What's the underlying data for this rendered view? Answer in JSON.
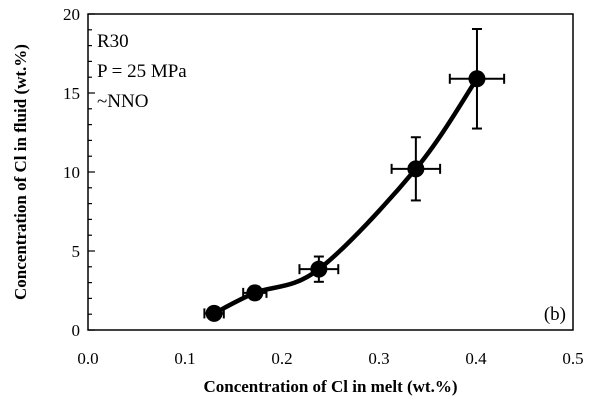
{
  "chart_data": {
    "type": "scatter",
    "xlabel": "Concentration of Cl in melt (wt.%)",
    "ylabel": "Concentration of Cl in fluid (wt.%)",
    "xlim": [
      0.0,
      0.5
    ],
    "ylim": [
      0,
      20
    ],
    "x_ticks": [
      "0.0",
      "0.1",
      "0.2",
      "0.3",
      "0.4",
      "0.5"
    ],
    "x_tick_values": [
      0.0,
      0.1,
      0.2,
      0.3,
      0.4,
      0.5
    ],
    "y_ticks": [
      "0",
      "5",
      "10",
      "15",
      "20"
    ],
    "y_tick_values": [
      0,
      5,
      10,
      15,
      20
    ],
    "y_minor_step": 1,
    "grid": false,
    "legend": "none",
    "annotations": [
      "R30",
      "P = 25 MPa",
      "~NNO"
    ],
    "panel_label": "(b)",
    "series": [
      {
        "points": [
          {
            "x": 0.13,
            "y": 1.05,
            "xerr": 0.01,
            "yerr": 0.3
          },
          {
            "x": 0.172,
            "y": 2.35,
            "xerr": 0.012,
            "yerr": 0.4
          },
          {
            "x": 0.238,
            "y": 3.85,
            "xerr": 0.02,
            "yerr": 0.8
          },
          {
            "x": 0.338,
            "y": 10.2,
            "xerr": 0.025,
            "yerr": 2.0
          },
          {
            "x": 0.401,
            "y": 15.9,
            "xerr": 0.028,
            "yerr": 3.15
          }
        ],
        "fit_curve": true,
        "color": "#000000"
      }
    ]
  }
}
